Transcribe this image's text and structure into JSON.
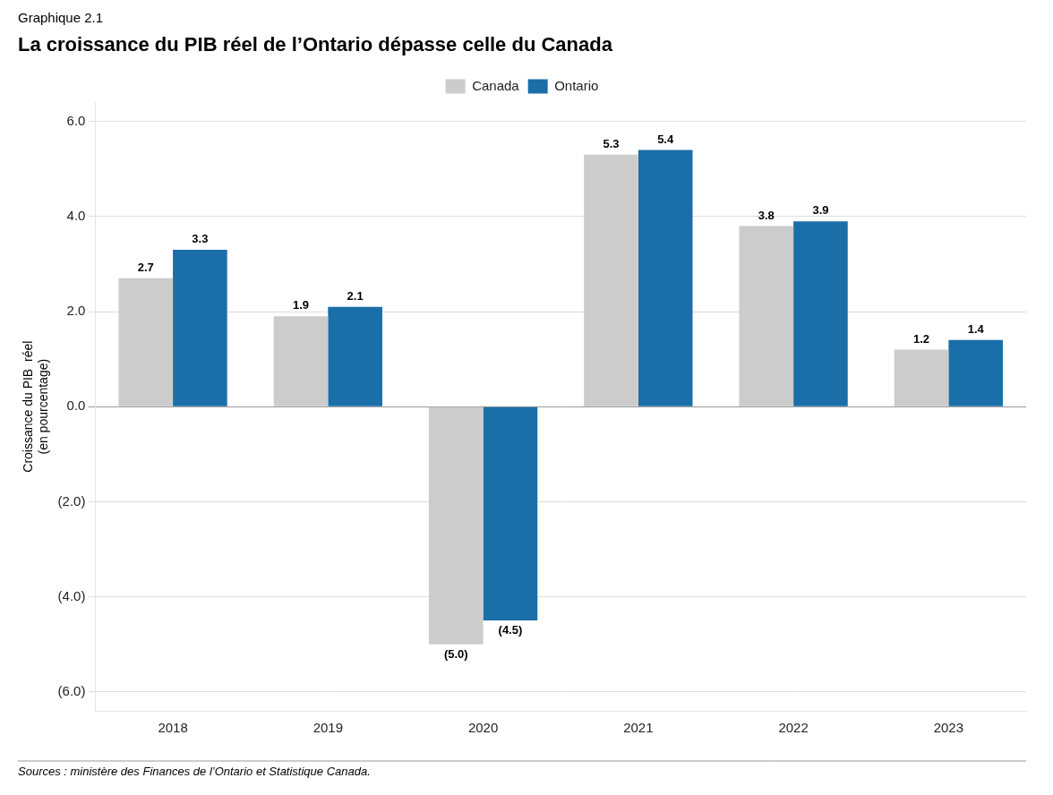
{
  "chart_data": {
    "type": "bar",
    "title": "La croissance du PIB réel de l’Ontario dépasse celle du Canada",
    "subtitle": "Graphique 2.1",
    "ylabel": [
      "Croissance du PIB  réel",
      "(en pourcentage)"
    ],
    "annotations": [
      "Sources : ministère des Finances de l’Ontario et Statistique Canada."
    ],
    "categories": [
      "2018",
      "2019",
      "2020",
      "2021",
      "2022",
      "2023"
    ],
    "series": [
      {
        "name": "Canada",
        "color": "#cccccc",
        "values": [
          2.7,
          1.9,
          -5.0,
          5.3,
          3.8,
          1.2
        ],
        "value_labels": [
          "2.7",
          "1.9",
          "(5.0)",
          "5.3",
          "3.8",
          "1.2"
        ]
      },
      {
        "name": "Ontario",
        "color": "#1a6fa8",
        "values": [
          3.3,
          2.1,
          -4.5,
          5.4,
          3.9,
          1.4
        ],
        "value_labels": [
          "3.3",
          "2.1",
          "(4.5)",
          "5.4",
          "3.9",
          "1.4"
        ]
      }
    ],
    "ylim": [
      -6.4,
      6.4
    ],
    "yticks": [
      {
        "value": 6.0,
        "label": "6.0"
      },
      {
        "value": 4.0,
        "label": "4.0"
      },
      {
        "value": 2.0,
        "label": "2.0"
      },
      {
        "value": 0.0,
        "label": "0.0"
      },
      {
        "value": -2.0,
        "label": "(2.0)"
      },
      {
        "value": -4.0,
        "label": "(4.0)"
      },
      {
        "value": -6.0,
        "label": "(6.0)"
      }
    ],
    "grid": true,
    "legend": "top",
    "data_labels": true
  }
}
